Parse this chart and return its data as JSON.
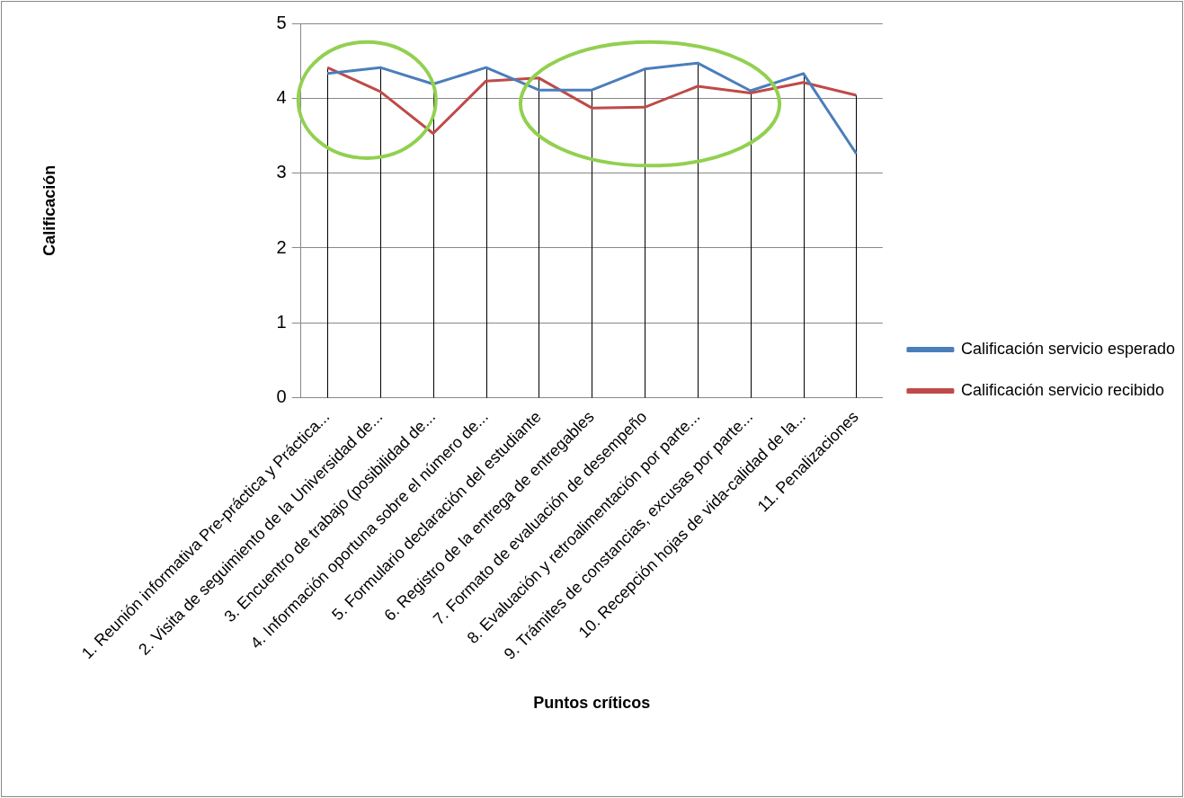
{
  "chart_data": {
    "type": "line",
    "xlabel": "Puntos críticos",
    "ylabel": "Calificación",
    "categories": [
      "1. Reunión informativa Pre-práctica y Práctica...",
      "2. Visita de seguimiento de la Universidad de...",
      "3. Encuentro de trabajo (posibilidad de...",
      "4. Información oportuna sobre el número de...",
      "5. Formulario declaración del estudiante",
      "6. Registro de la entrega de entregables",
      "7. Formato de evaluación de desempeño",
      "8. Evaluación y retroalimentación por parte...",
      "9. Trámites de constancias, excusas por parte...",
      "10. Recepción hojas de vida-calidad de la...",
      "11. Penalizaciones"
    ],
    "series": [
      {
        "name": "Calificación servicio esperado",
        "color": "#4a7ebb",
        "values": [
          4.33,
          4.41,
          4.19,
          4.41,
          4.11,
          4.11,
          4.39,
          4.47,
          4.1,
          4.33,
          3.26
        ]
      },
      {
        "name": "Calificación servicio recibido",
        "color": "#be4b48",
        "values": [
          4.41,
          4.09,
          3.53,
          4.23,
          4.27,
          3.87,
          3.88,
          4.16,
          4.07,
          4.21,
          4.04
        ]
      }
    ],
    "ylim": [
      0,
      5
    ],
    "yticks": [
      0,
      1,
      2,
      3,
      4,
      5
    ],
    "grid": true,
    "legend": "right",
    "marker": "none",
    "line_style": "solid"
  }
}
